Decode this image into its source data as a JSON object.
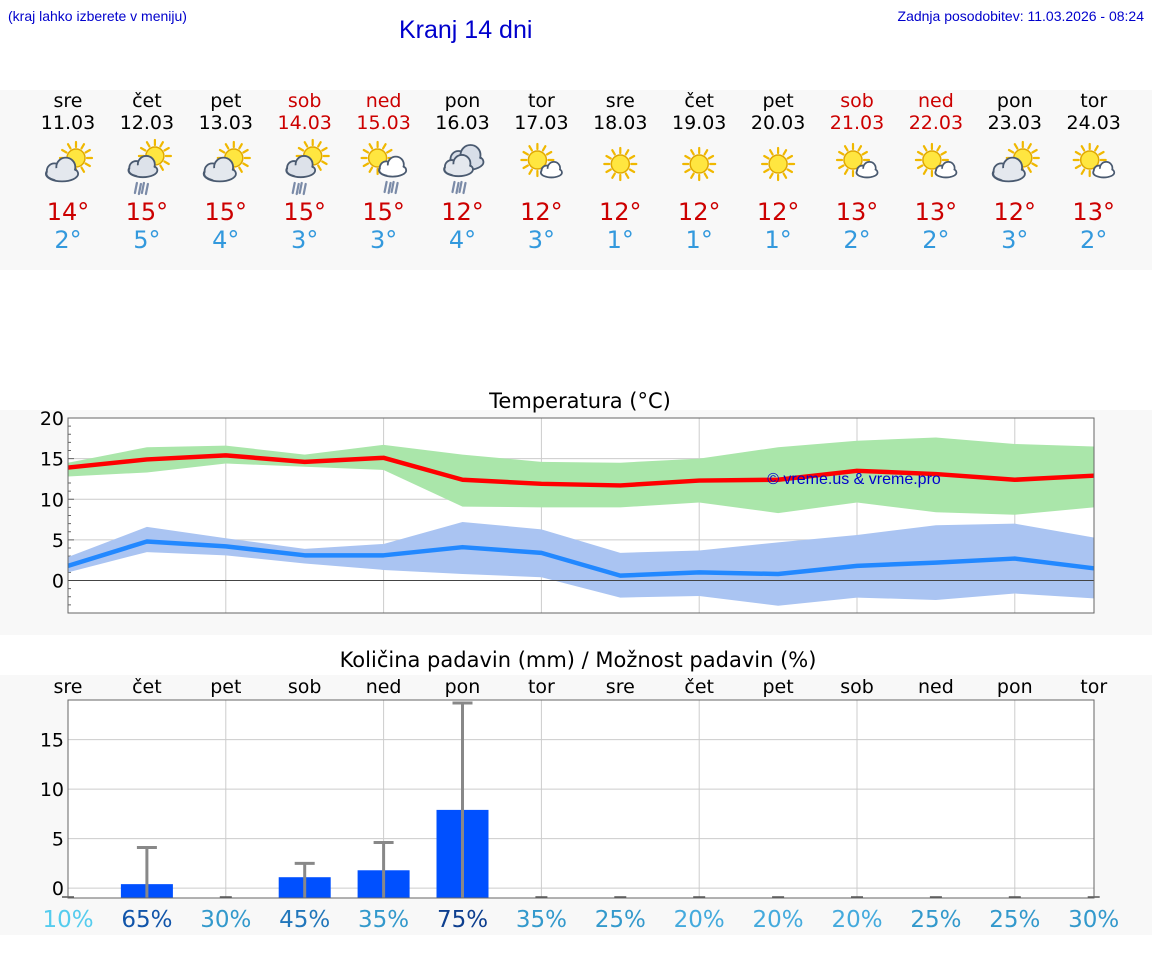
{
  "header": {
    "left_note": "(kraj lahko izberete v meniju)",
    "title": "Kranj 14 dni",
    "updated": "Zadnja posodobitev: 11.03.2026 - 08:24"
  },
  "colors": {
    "weekday": "#000000",
    "weekend": "#cc0000",
    "tmax": "#cc0000",
    "tmin": "#3399dd",
    "max_line": "#ff0000",
    "max_band": "#aae6aa",
    "min_line": "#2288ff",
    "min_band": "#aac4f2",
    "bar": "#0050ff",
    "error": "#888888",
    "watermark": "#0000cc"
  },
  "days": [
    {
      "name": "sre",
      "date": "11.03",
      "weekend": false,
      "icon": "partly-cloudy-icon",
      "tmax": "14°",
      "tmin": "2°"
    },
    {
      "name": "čet",
      "date": "12.03",
      "weekend": false,
      "icon": "sun-rain-icon",
      "tmax": "15°",
      "tmin": "5°"
    },
    {
      "name": "pet",
      "date": "13.03",
      "weekend": false,
      "icon": "partly-cloudy-icon",
      "tmax": "15°",
      "tmin": "4°"
    },
    {
      "name": "sob",
      "date": "14.03",
      "weekend": true,
      "icon": "sun-rain-icon",
      "tmax": "15°",
      "tmin": "3°"
    },
    {
      "name": "ned",
      "date": "15.03",
      "weekend": true,
      "icon": "sun-cloud-rain-icon",
      "tmax": "15°",
      "tmin": "3°"
    },
    {
      "name": "pon",
      "date": "16.03",
      "weekend": false,
      "icon": "cloud-rain-icon",
      "tmax": "12°",
      "tmin": "4°"
    },
    {
      "name": "tor",
      "date": "17.03",
      "weekend": false,
      "icon": "sun-small-cloud-icon",
      "tmax": "12°",
      "tmin": "3°"
    },
    {
      "name": "sre",
      "date": "18.03",
      "weekend": false,
      "icon": "sun-icon",
      "tmax": "12°",
      "tmin": "1°"
    },
    {
      "name": "čet",
      "date": "19.03",
      "weekend": false,
      "icon": "sun-icon",
      "tmax": "12°",
      "tmin": "1°"
    },
    {
      "name": "pet",
      "date": "20.03",
      "weekend": false,
      "icon": "sun-icon",
      "tmax": "12°",
      "tmin": "1°"
    },
    {
      "name": "sob",
      "date": "21.03",
      "weekend": true,
      "icon": "sun-small-cloud-icon",
      "tmax": "13°",
      "tmin": "2°"
    },
    {
      "name": "ned",
      "date": "22.03",
      "weekend": true,
      "icon": "sun-small-cloud-icon",
      "tmax": "13°",
      "tmin": "2°"
    },
    {
      "name": "pon",
      "date": "23.03",
      "weekend": false,
      "icon": "partly-cloudy-icon",
      "tmax": "12°",
      "tmin": "3°"
    },
    {
      "name": "tor",
      "date": "24.03",
      "weekend": false,
      "icon": "sun-small-cloud-icon",
      "tmax": "13°",
      "tmin": "2°"
    }
  ],
  "chart_data": [
    {
      "type": "line",
      "title": "Temperatura (°C)",
      "ylim": [
        -4,
        20
      ],
      "yticks": [
        "20",
        "15",
        "10",
        "5",
        "0"
      ],
      "ytick_values": [
        20,
        15,
        10,
        5,
        0
      ],
      "x": [
        0,
        1,
        2,
        3,
        4,
        5,
        6,
        7,
        8,
        9,
        10,
        11,
        12,
        13
      ],
      "series": [
        {
          "name": "max",
          "values": [
            13.9,
            14.9,
            15.4,
            14.6,
            15.1,
            12.4,
            11.9,
            11.7,
            12.3,
            12.4,
            13.5,
            13.1,
            12.4,
            12.9
          ],
          "band_low": [
            12.8,
            13.3,
            14.4,
            14.0,
            13.6,
            9.1,
            9.0,
            9.0,
            9.6,
            8.3,
            9.6,
            8.4,
            8.1,
            9.0
          ],
          "band_high": [
            14.5,
            16.4,
            16.6,
            15.5,
            16.7,
            15.5,
            14.6,
            14.5,
            15.0,
            16.4,
            17.2,
            17.6,
            16.8,
            16.5
          ]
        },
        {
          "name": "min",
          "values": [
            1.8,
            4.8,
            4.2,
            3.1,
            3.1,
            4.1,
            3.4,
            0.6,
            1.0,
            0.8,
            1.8,
            2.2,
            2.7,
            1.5
          ],
          "band_low": [
            1.0,
            3.5,
            3.1,
            2.1,
            1.3,
            0.8,
            0.4,
            -2.1,
            -1.9,
            -3.1,
            -2.1,
            -2.4,
            -1.6,
            -2.2
          ],
          "band_high": [
            2.9,
            6.6,
            5.2,
            3.9,
            4.5,
            7.2,
            6.3,
            3.4,
            3.7,
            4.7,
            5.6,
            6.8,
            7.0,
            5.3
          ]
        }
      ],
      "watermark": "© vreme.us & vreme.pro"
    },
    {
      "type": "bar",
      "title": "Količina padavin (mm) / Možnost padavin (%)",
      "ylim": [
        -1,
        19
      ],
      "yticks": [
        "15",
        "10",
        "5",
        "0"
      ],
      "ytick_values": [
        15,
        10,
        5,
        0
      ],
      "categories": [
        "sre",
        "čet",
        "pet",
        "sob",
        "ned",
        "pon",
        "tor",
        "sre",
        "čet",
        "pet",
        "sob",
        "ned",
        "pon",
        "tor"
      ],
      "values": [
        0,
        0.4,
        0,
        1.1,
        1.8,
        7.9,
        0,
        0,
        0,
        0,
        0,
        0,
        0,
        0
      ],
      "error_high": [
        0,
        4.1,
        0,
        2.5,
        4.6,
        18.7,
        0,
        0,
        0,
        0,
        0,
        0,
        0,
        0
      ],
      "probability": [
        "10%",
        "65%",
        "30%",
        "45%",
        "35%",
        "75%",
        "35%",
        "25%",
        "20%",
        "20%",
        "20%",
        "25%",
        "25%",
        "30%"
      ],
      "probability_colors": [
        "#55ccee",
        "#1155aa",
        "#3399cc",
        "#2277bb",
        "#3399cc",
        "#0e3f8f",
        "#3399cc",
        "#3399cc",
        "#44aadd",
        "#44aadd",
        "#44aadd",
        "#3399cc",
        "#3399cc",
        "#3399cc"
      ]
    }
  ]
}
